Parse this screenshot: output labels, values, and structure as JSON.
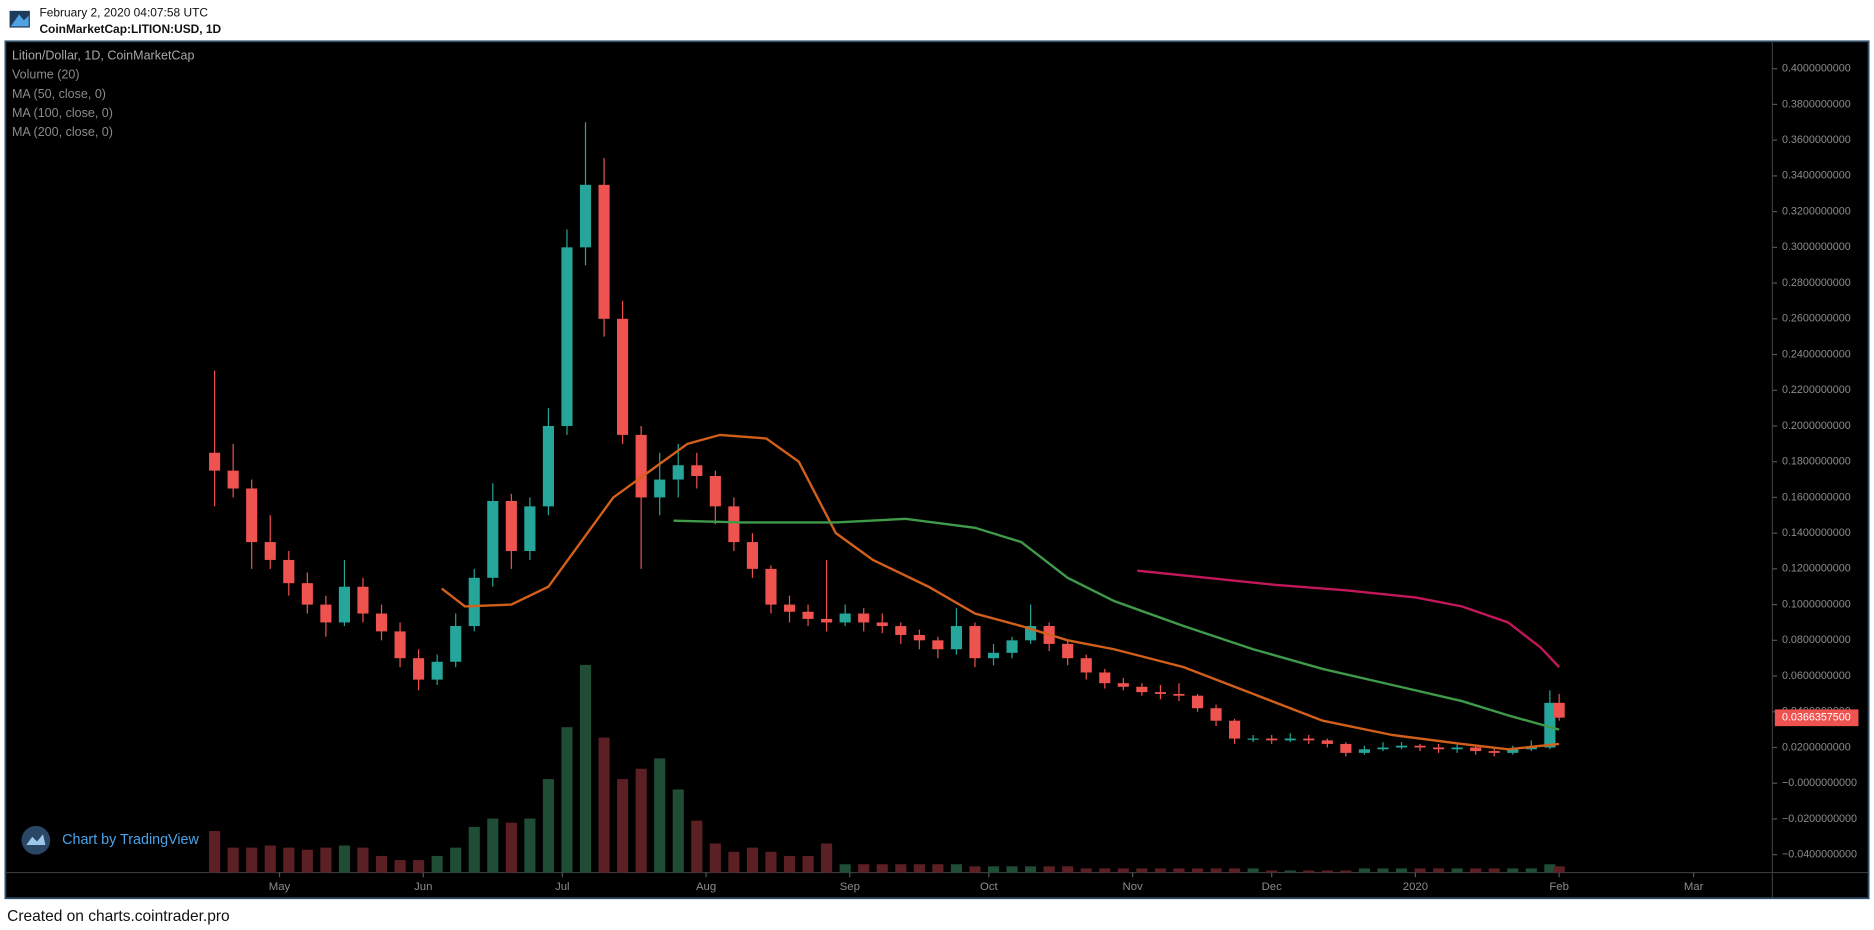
{
  "header": {
    "date": "February 2, 2020 04:07:58 UTC",
    "symbol": "CoinMarketCap:LITION:USD, 1D"
  },
  "footer": "Created on charts.cointrader.pro",
  "chart_data": {
    "type": "candlestick",
    "title": "Lition/Dollar, 1D, CoinMarketCap",
    "watermark": "Chart by TradingView",
    "up_color": "#26a69a",
    "down_color": "#ef5350",
    "x": [
      -14,
      -10,
      -6,
      -2,
      2,
      6,
      10,
      14,
      18,
      22,
      26,
      30,
      34,
      38,
      42,
      46,
      50,
      54,
      58,
      62,
      66,
      70,
      74,
      78,
      82,
      86,
      90,
      94,
      98,
      102,
      106,
      110,
      114,
      118,
      122,
      126,
      130,
      134,
      138,
      142,
      146,
      150,
      154,
      158,
      162,
      166,
      170,
      174,
      178,
      182,
      186,
      190,
      194,
      198,
      202,
      206,
      210,
      214,
      218,
      222,
      226,
      230,
      234,
      238,
      242,
      246,
      250,
      254,
      258,
      262,
      266,
      270,
      274,
      276
    ],
    "ohlc": [
      [
        0.185,
        0.231,
        0.155,
        0.175
      ],
      [
        0.175,
        0.19,
        0.16,
        0.165
      ],
      [
        0.165,
        0.17,
        0.12,
        0.135
      ],
      [
        0.135,
        0.15,
        0.12,
        0.125
      ],
      [
        0.125,
        0.13,
        0.105,
        0.112
      ],
      [
        0.112,
        0.118,
        0.095,
        0.1
      ],
      [
        0.1,
        0.105,
        0.082,
        0.09
      ],
      [
        0.09,
        0.125,
        0.088,
        0.11
      ],
      [
        0.11,
        0.115,
        0.09,
        0.095
      ],
      [
        0.095,
        0.1,
        0.08,
        0.085
      ],
      [
        0.085,
        0.09,
        0.065,
        0.07
      ],
      [
        0.07,
        0.075,
        0.052,
        0.058
      ],
      [
        0.058,
        0.072,
        0.055,
        0.068
      ],
      [
        0.068,
        0.095,
        0.065,
        0.088
      ],
      [
        0.088,
        0.12,
        0.085,
        0.115
      ],
      [
        0.115,
        0.168,
        0.11,
        0.158
      ],
      [
        0.158,
        0.162,
        0.12,
        0.13
      ],
      [
        0.13,
        0.16,
        0.125,
        0.155
      ],
      [
        0.155,
        0.21,
        0.15,
        0.2
      ],
      [
        0.2,
        0.31,
        0.195,
        0.3
      ],
      [
        0.3,
        0.37,
        0.29,
        0.335
      ],
      [
        0.335,
        0.35,
        0.25,
        0.26
      ],
      [
        0.26,
        0.27,
        0.19,
        0.195
      ],
      [
        0.195,
        0.2,
        0.12,
        0.16
      ],
      [
        0.16,
        0.185,
        0.15,
        0.17
      ],
      [
        0.17,
        0.19,
        0.16,
        0.178
      ],
      [
        0.178,
        0.185,
        0.165,
        0.172
      ],
      [
        0.172,
        0.175,
        0.145,
        0.155
      ],
      [
        0.155,
        0.16,
        0.13,
        0.135
      ],
      [
        0.135,
        0.14,
        0.115,
        0.12
      ],
      [
        0.12,
        0.122,
        0.095,
        0.1
      ],
      [
        0.1,
        0.105,
        0.09,
        0.096
      ],
      [
        0.096,
        0.1,
        0.088,
        0.092
      ],
      [
        0.092,
        0.125,
        0.085,
        0.09
      ],
      [
        0.09,
        0.1,
        0.088,
        0.095
      ],
      [
        0.095,
        0.098,
        0.085,
        0.09
      ],
      [
        0.09,
        0.095,
        0.084,
        0.088
      ],
      [
        0.088,
        0.09,
        0.078,
        0.083
      ],
      [
        0.083,
        0.086,
        0.075,
        0.08
      ],
      [
        0.08,
        0.082,
        0.07,
        0.075
      ],
      [
        0.075,
        0.098,
        0.072,
        0.088
      ],
      [
        0.088,
        0.09,
        0.065,
        0.07
      ],
      [
        0.07,
        0.078,
        0.066,
        0.073
      ],
      [
        0.073,
        0.082,
        0.07,
        0.08
      ],
      [
        0.08,
        0.1,
        0.078,
        0.088
      ],
      [
        0.088,
        0.09,
        0.074,
        0.078
      ],
      [
        0.078,
        0.08,
        0.066,
        0.07
      ],
      [
        0.07,
        0.072,
        0.058,
        0.062
      ],
      [
        0.062,
        0.064,
        0.053,
        0.056
      ],
      [
        0.056,
        0.059,
        0.052,
        0.054
      ],
      [
        0.054,
        0.056,
        0.049,
        0.051
      ],
      [
        0.051,
        0.055,
        0.047,
        0.05
      ],
      [
        0.05,
        0.056,
        0.046,
        0.049
      ],
      [
        0.049,
        0.05,
        0.04,
        0.042
      ],
      [
        0.042,
        0.044,
        0.032,
        0.035
      ],
      [
        0.035,
        0.036,
        0.022,
        0.025
      ],
      [
        0.025,
        0.027,
        0.023,
        0.025
      ],
      [
        0.025,
        0.027,
        0.022,
        0.024
      ],
      [
        0.024,
        0.028,
        0.023,
        0.025
      ],
      [
        0.025,
        0.027,
        0.022,
        0.024
      ],
      [
        0.024,
        0.025,
        0.02,
        0.022
      ],
      [
        0.022,
        0.023,
        0.015,
        0.017
      ],
      [
        0.017,
        0.021,
        0.016,
        0.019
      ],
      [
        0.019,
        0.023,
        0.018,
        0.02
      ],
      [
        0.02,
        0.023,
        0.019,
        0.021
      ],
      [
        0.021,
        0.022,
        0.018,
        0.02
      ],
      [
        0.02,
        0.022,
        0.017,
        0.019
      ],
      [
        0.019,
        0.022,
        0.017,
        0.02
      ],
      [
        0.02,
        0.021,
        0.016,
        0.018
      ],
      [
        0.018,
        0.02,
        0.015,
        0.017
      ],
      [
        0.017,
        0.021,
        0.016,
        0.019
      ],
      [
        0.019,
        0.024,
        0.018,
        0.02
      ],
      [
        0.02,
        0.052,
        0.019,
        0.045
      ],
      [
        0.045,
        0.05,
        0.035,
        0.0367
      ]
    ],
    "volume": {
      "name": "Volume (20)",
      "up_color": "#1f4d36",
      "down_color": "#5c1f24",
      "vlim": [
        0,
        400
      ],
      "values": [
        20,
        12,
        12,
        13,
        12,
        11,
        12,
        13,
        12,
        8,
        6,
        6,
        8,
        12,
        22,
        26,
        24,
        26,
        45,
        70,
        100,
        65,
        45,
        50,
        55,
        40,
        25,
        14,
        10,
        12,
        10,
        8,
        8,
        14,
        4,
        4,
        4,
        4,
        4,
        4,
        4,
        3,
        3,
        3,
        3,
        3,
        3,
        2,
        2,
        2,
        2,
        2,
        2,
        2,
        2,
        2,
        2,
        1,
        1,
        1,
        1,
        1,
        2,
        2,
        2,
        2,
        2,
        2,
        2,
        2,
        2,
        2,
        4,
        3
      ]
    },
    "series": [
      {
        "name": "MA (50, close, 0)",
        "color": "#d2601a",
        "x": [
          35,
          40,
          50,
          58,
          65,
          72,
          80,
          88,
          95,
          105,
          112,
          120,
          128,
          140,
          150,
          160,
          170,
          180,
          195,
          210,
          225,
          240,
          255,
          265,
          276
        ],
        "values": [
          0.109,
          0.099,
          0.1,
          0.11,
          0.135,
          0.16,
          0.175,
          0.19,
          0.195,
          0.193,
          0.18,
          0.14,
          0.125,
          0.11,
          0.095,
          0.088,
          0.08,
          0.075,
          0.065,
          0.05,
          0.035,
          0.027,
          0.022,
          0.019,
          0.022
        ]
      },
      {
        "name": "MA (100, close, 0)",
        "color": "#3f9a4a",
        "x": [
          85,
          100,
          120,
          135,
          150,
          160,
          170,
          180,
          195,
          210,
          225,
          240,
          255,
          265,
          276
        ],
        "values": [
          0.147,
          0.146,
          0.146,
          0.148,
          0.143,
          0.135,
          0.115,
          0.102,
          0.088,
          0.075,
          0.064,
          0.055,
          0.046,
          0.038,
          0.03
        ]
      },
      {
        "name": "MA (200, close, 0)",
        "color": "#c2185b",
        "x": [
          185,
          200,
          215,
          230,
          245,
          255,
          265,
          272,
          276
        ],
        "values": [
          0.119,
          0.115,
          0.111,
          0.108,
          0.104,
          0.099,
          0.09,
          0.076,
          0.065
        ]
      }
    ],
    "last_price": {
      "value": 0.03663575,
      "label": "0.0366357500"
    },
    "xlim": [
      -59,
      322
    ],
    "xticks": [
      {
        "value": 0,
        "label": "May"
      },
      {
        "value": 31,
        "label": "Jun"
      },
      {
        "value": 61,
        "label": "Jul"
      },
      {
        "value": 92,
        "label": "Aug"
      },
      {
        "value": 123,
        "label": "Sep"
      },
      {
        "value": 153,
        "label": "Oct"
      },
      {
        "value": 184,
        "label": "Nov"
      },
      {
        "value": 214,
        "label": "Dec"
      },
      {
        "value": 245,
        "label": "2020"
      },
      {
        "value": 276,
        "label": "Feb"
      },
      {
        "value": 305,
        "label": "Mar"
      }
    ],
    "ylim": [
      -0.05,
      0.415
    ],
    "yticks": [
      {
        "value": 0.4,
        "label": "0.4000000000"
      },
      {
        "value": 0.38,
        "label": "0.3800000000"
      },
      {
        "value": 0.36,
        "label": "0.3600000000"
      },
      {
        "value": 0.34,
        "label": "0.3400000000"
      },
      {
        "value": 0.32,
        "label": "0.3200000000"
      },
      {
        "value": 0.3,
        "label": "0.3000000000"
      },
      {
        "value": 0.28,
        "label": "0.2800000000"
      },
      {
        "value": 0.26,
        "label": "0.2600000000"
      },
      {
        "value": 0.24,
        "label": "0.2400000000"
      },
      {
        "value": 0.22,
        "label": "0.2200000000"
      },
      {
        "value": 0.2,
        "label": "0.2000000000"
      },
      {
        "value": 0.18,
        "label": "0.1800000000"
      },
      {
        "value": 0.16,
        "label": "0.1600000000"
      },
      {
        "value": 0.14,
        "label": "0.1400000000"
      },
      {
        "value": 0.12,
        "label": "0.1200000000"
      },
      {
        "value": 0.1,
        "label": "0.1000000000"
      },
      {
        "value": 0.08,
        "label": "0.0800000000"
      },
      {
        "value": 0.06,
        "label": "0.0600000000"
      },
      {
        "value": 0.04,
        "label": "0.0400000000"
      },
      {
        "value": 0.02,
        "label": "0.0200000000"
      },
      {
        "value": 0,
        "label": "−0.0000000000"
      },
      {
        "value": -0.02,
        "label": "−0.0200000000"
      },
      {
        "value": -0.04,
        "label": "−0.0400000000"
      }
    ],
    "grid": false
  }
}
